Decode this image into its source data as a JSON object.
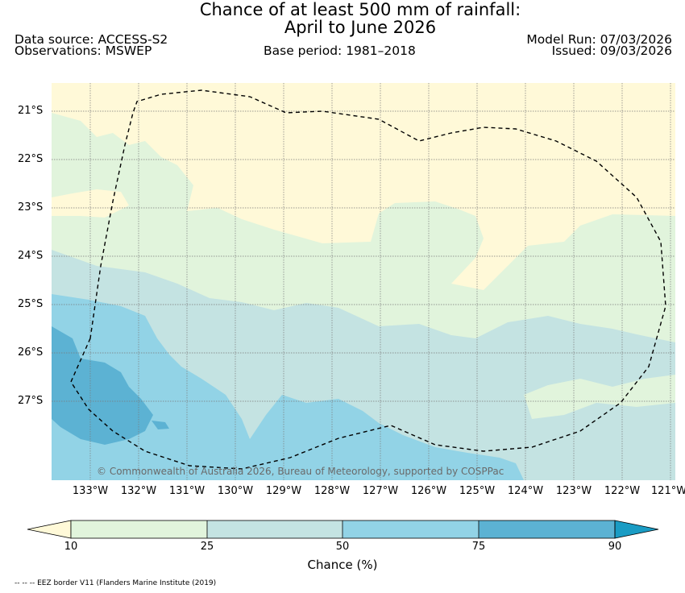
{
  "header": {
    "title_line1": "Chance of at least 500 mm of rainfall:",
    "title_line2": "April to June 2026",
    "data_source": "Data source: ACCESS-S2",
    "observations": "Observations: MSWEP",
    "base_period": "Base period: 1981–2018",
    "model_run": "Model Run: 07/03/2026",
    "issued": "Issued: 09/03/2026"
  },
  "map": {
    "lat_labels": [
      "21°S",
      "22°S",
      "23°S",
      "24°S",
      "25°S",
      "26°S",
      "27°S"
    ],
    "lon_labels": [
      "133°W",
      "132°W",
      "131°W",
      "130°W",
      "129°W",
      "128°W",
      "127°W",
      "126°W",
      "125°W",
      "124°W",
      "123°W",
      "122°W",
      "121°W"
    ],
    "copyright": "© Commonwealth of Australia 2026, Bureau of Meteorology, supported by COSPPac",
    "colors": {
      "below_10": "#fff9d8",
      "10_25": "#e1f4dc",
      "25_50": "#c4e3e2",
      "50_75": "#92d3e6",
      "75_90": "#5cb2d3",
      "above_90": "#1a9cc4"
    }
  },
  "colorbar": {
    "ticks": [
      "10",
      "25",
      "50",
      "75",
      "90"
    ],
    "label": "Chance (%)"
  },
  "footnote": "-- -- -- EEZ border V11 (Flanders Marine Institute (2019)"
}
